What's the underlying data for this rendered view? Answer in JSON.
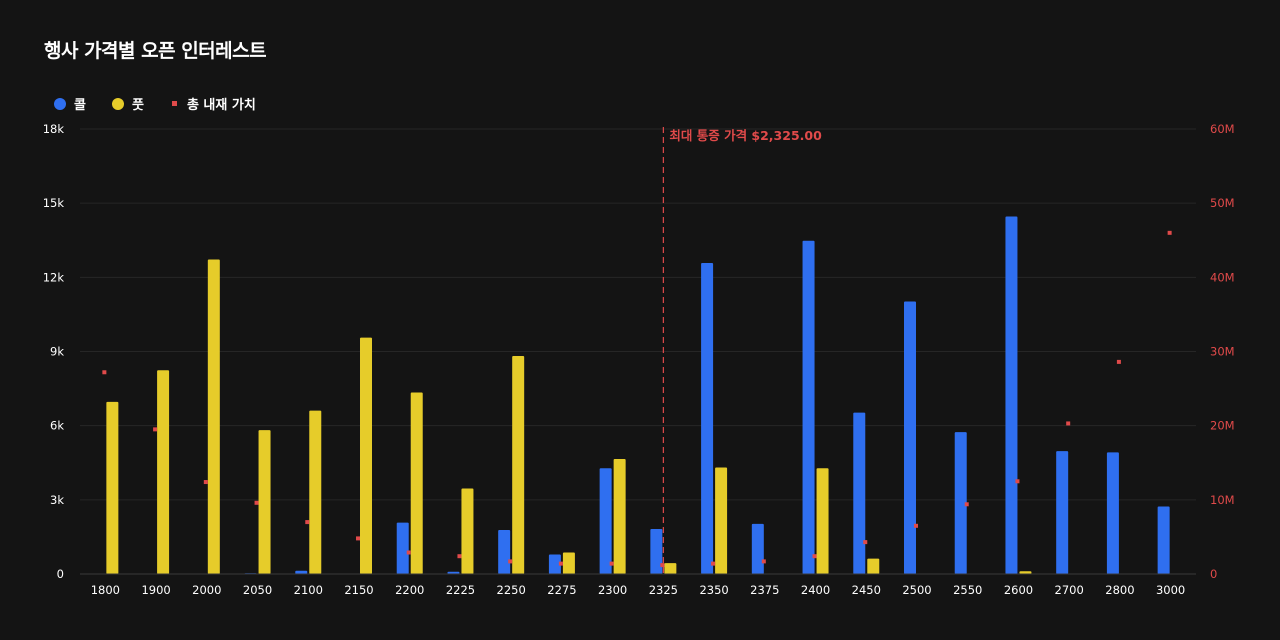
{
  "title": "행사 가격별 오픈 인터레스트",
  "legend": [
    {
      "label": "콜",
      "color": "#2f6ff0",
      "shape": "circle"
    },
    {
      "label": "풋",
      "color": "#e6cc2a",
      "shape": "circle"
    },
    {
      "label": "총 내재 가치",
      "color": "#e04a4a",
      "shape": "square"
    }
  ],
  "chart_data": {
    "type": "bar",
    "title": "행사 가격별 오픈 인터레스트",
    "categories": [
      "1800",
      "1900",
      "2000",
      "2050",
      "2100",
      "2150",
      "2200",
      "2225",
      "2250",
      "2275",
      "2300",
      "2325",
      "2350",
      "2375",
      "2400",
      "2450",
      "2500",
      "2550",
      "2600",
      "2700",
      "2800",
      "3000"
    ],
    "series": [
      {
        "name": "콜",
        "color": "#2f6ff0",
        "axis": "left",
        "values": [
          0,
          0,
          0,
          30,
          130,
          0,
          2080,
          90,
          1780,
          790,
          4280,
          1820,
          12580,
          2030,
          13480,
          6530,
          11020,
          5740,
          14460,
          4970,
          4920,
          2730
        ]
      },
      {
        "name": "풋",
        "color": "#e6cc2a",
        "axis": "left",
        "values": [
          6960,
          8240,
          12720,
          5820,
          6610,
          9560,
          7340,
          3460,
          8820,
          870,
          4650,
          440,
          4310,
          0,
          4280,
          620,
          0,
          0,
          110,
          0,
          0,
          0
        ]
      },
      {
        "name": "총 내재 가치",
        "color": "#e04a4a",
        "axis": "right",
        "type": "scatter",
        "values": [
          27200000,
          19500000,
          12400000,
          9600000,
          7000000,
          4800000,
          2900000,
          2400000,
          1700000,
          1400000,
          1400000,
          1200000,
          1400000,
          1700000,
          2400000,
          4300000,
          6500000,
          9400000,
          12500000,
          20300000,
          28600000,
          46000000
        ]
      }
    ],
    "y_left": {
      "min": 0,
      "max": 18000,
      "ticks": [
        0,
        3000,
        6000,
        9000,
        12000,
        15000,
        18000
      ],
      "tick_labels": [
        "0",
        "3k",
        "6k",
        "9k",
        "12k",
        "15k",
        "18k"
      ]
    },
    "y_right": {
      "min": 0,
      "max": 60000000,
      "ticks": [
        0,
        10000000,
        20000000,
        30000000,
        40000000,
        50000000,
        60000000
      ],
      "tick_labels": [
        "0",
        "10M",
        "20M",
        "30M",
        "40M",
        "50M",
        "60M"
      ],
      "color": "#e04a4a"
    },
    "grid": true,
    "legend_position": "top-left",
    "annotation": {
      "label": "최대 통증 가격 $2,325.00",
      "category": "2325",
      "color": "#e04a4a"
    }
  }
}
